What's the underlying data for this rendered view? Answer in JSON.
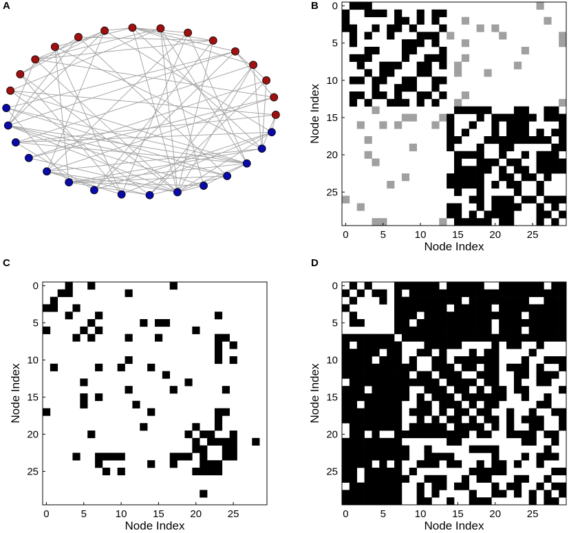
{
  "panels": {
    "a": {
      "label": "A"
    },
    "b": {
      "label": "B"
    },
    "c": {
      "label": "C"
    },
    "d": {
      "label": "D"
    }
  },
  "axes": {
    "xlabel": "Node Index",
    "ylabel": "Node Index",
    "x_ticks": [
      "0",
      "5",
      "10",
      "15",
      "20",
      "25"
    ],
    "y_ticks": [
      "0",
      "5",
      "10",
      "15",
      "20",
      "25"
    ]
  },
  "colors": {
    "edge": "#a6a6a6",
    "node_group1": "#a01010",
    "node_group2": "#0a0aa8",
    "cell_on": "#000000",
    "cell_between": "#a0a0a0"
  },
  "chart_data": [
    {
      "type": "network",
      "panel": "A",
      "nodes": 30,
      "groups": [
        {
          "color": "red",
          "count": 15
        },
        {
          "color": "blue",
          "count": 15
        }
      ]
    },
    {
      "type": "heatmap",
      "panel": "B",
      "size": 30,
      "xlabel": "Node Index",
      "ylabel": "Node Index",
      "values": "binary adjacency matrix (black = within-group link, gray = between-group link, white = none)"
    },
    {
      "type": "heatmap",
      "panel": "C",
      "size": 30,
      "xlabel": "Node Index",
      "ylabel": "Node Index",
      "values": "binary adjacency matrix (black = link, white = none)"
    },
    {
      "type": "heatmap",
      "panel": "D",
      "size": 30,
      "xlabel": "Node Index",
      "ylabel": "Node Index",
      "values": "binary adjacency matrix (black = link, white = none)"
    }
  ]
}
